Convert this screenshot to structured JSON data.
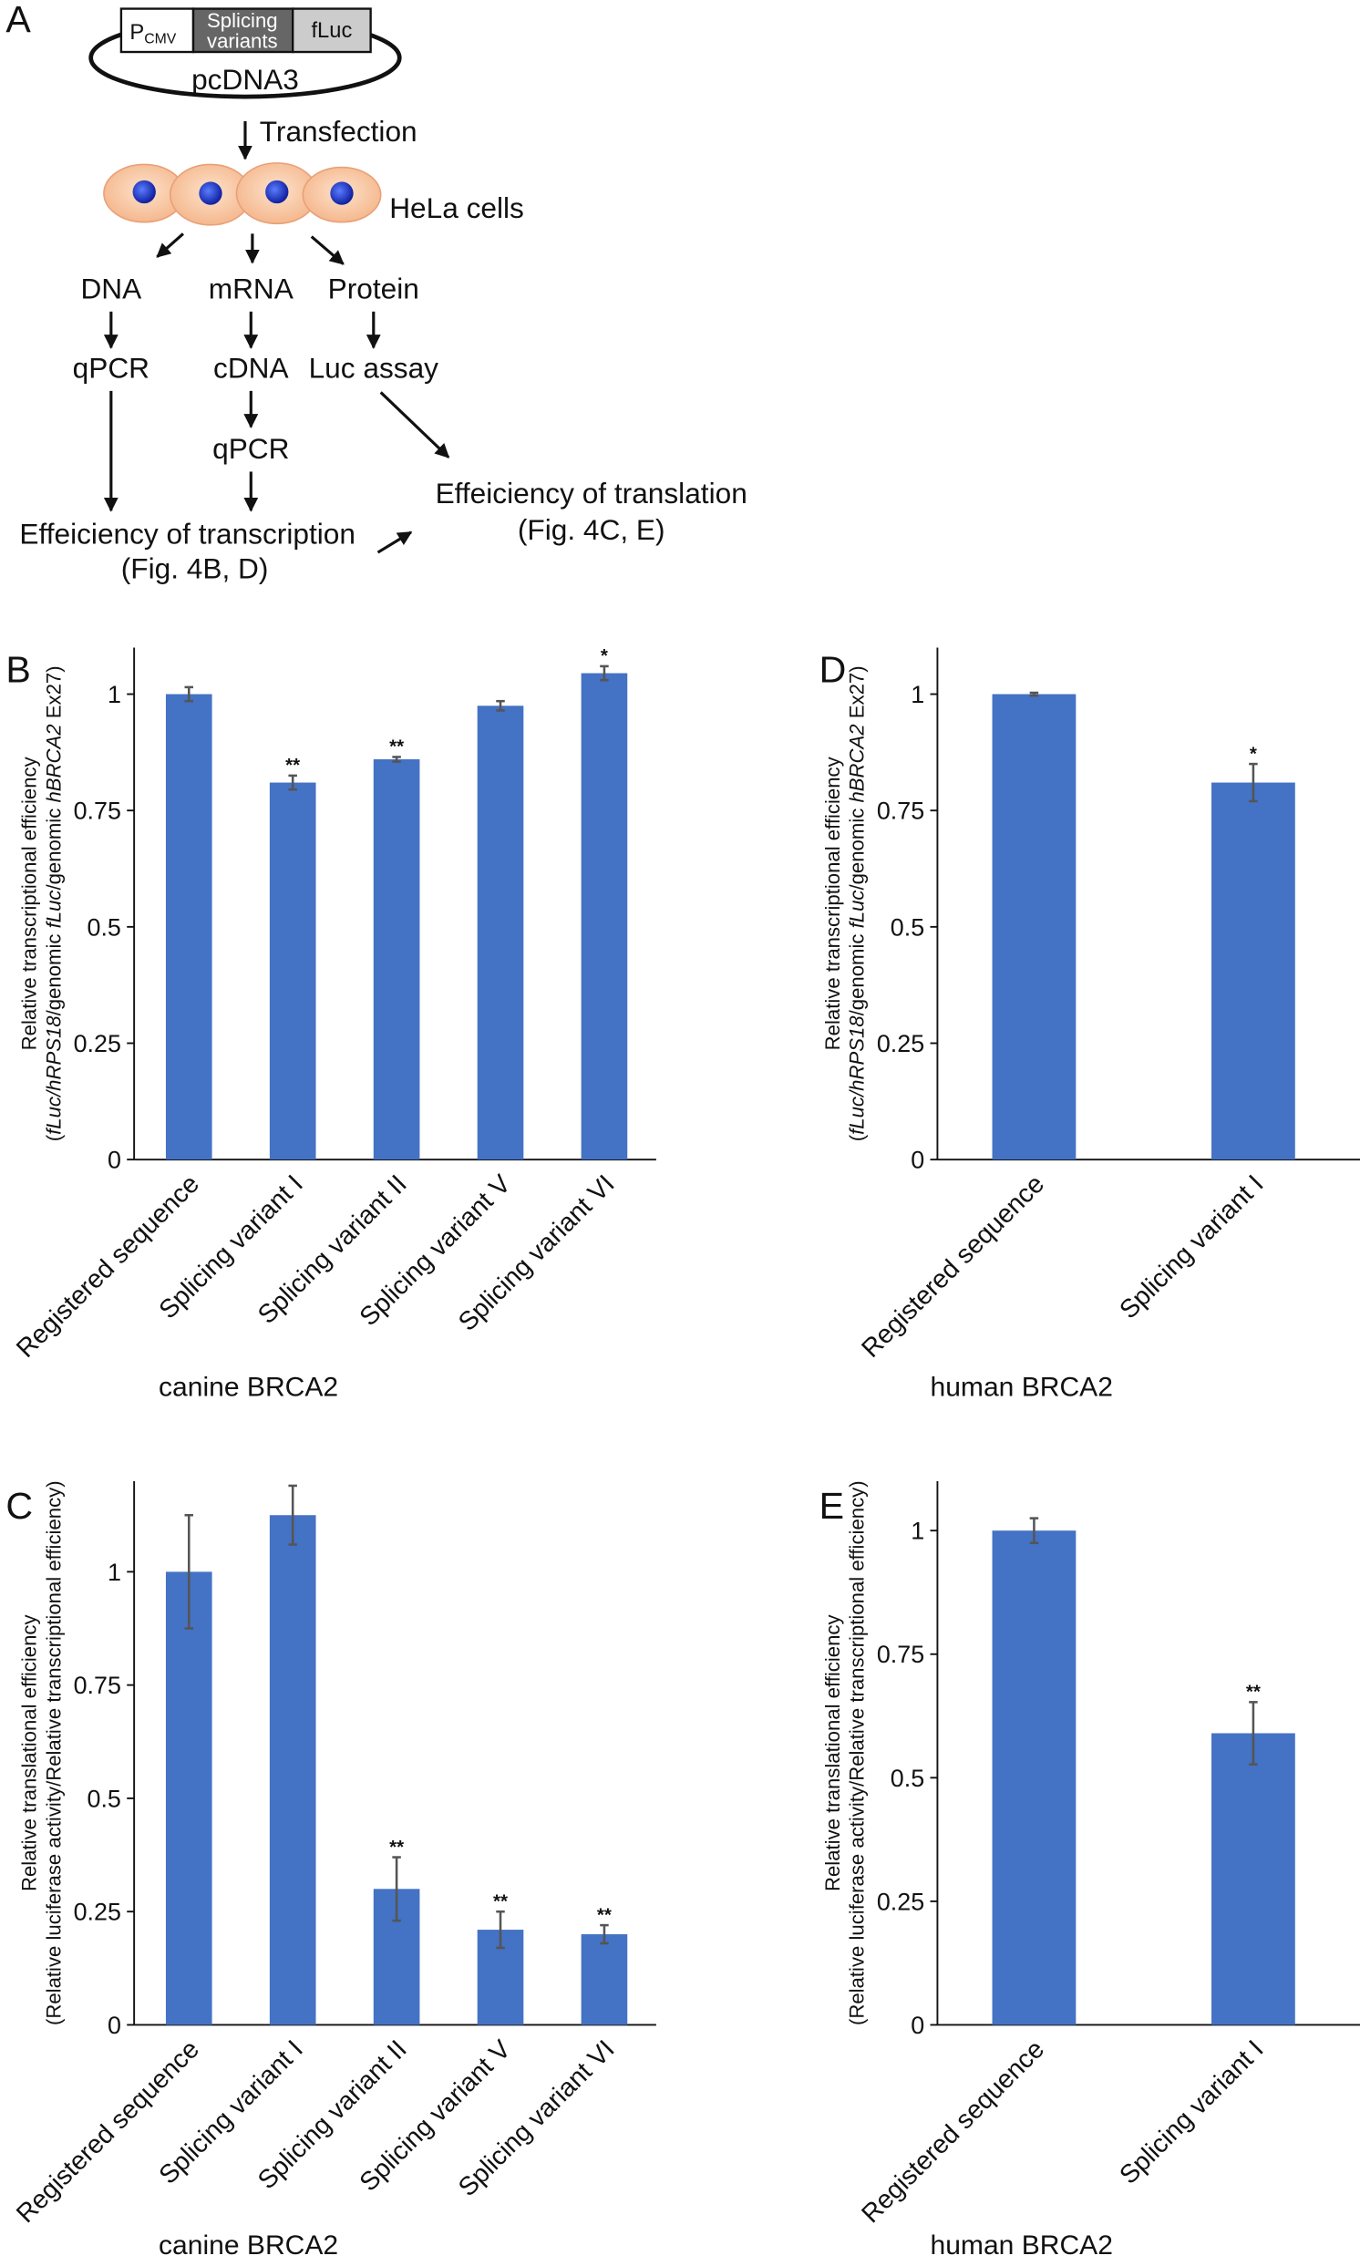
{
  "diagram": {
    "panel": "A",
    "promoter": "P",
    "promoter_sub": "CMV",
    "insert": [
      "Splicing",
      "variants"
    ],
    "reporter": "fLuc",
    "vector": "pcDNA3",
    "transfection": "Transfection",
    "cells": "HeLa cells",
    "dna": "DNA",
    "mrna": "mRNA",
    "protein": "Protein",
    "qpcr_dna": "qPCR",
    "cdna": "cDNA",
    "luc_assay": "Luc assay",
    "qpcr_cdna": "qPCR",
    "transcription": [
      "Effeiciency of transcription",
      "(Fig. 4B, D)"
    ],
    "translation": [
      "Effeiciency of translation",
      "(Fig. 4C, E)"
    ]
  },
  "chart_data": [
    {
      "type": "bar",
      "panel": "B",
      "categories": [
        "Registered sequence",
        "Splicing variant I",
        "Splicing variant II",
        "Splicing variant V",
        "Splicing variant VI"
      ],
      "values": [
        1.0,
        0.81,
        0.86,
        0.975,
        1.045
      ],
      "errors": [
        0.015,
        0.015,
        0.005,
        0.01,
        0.015
      ],
      "annotations": [
        null,
        "**",
        "**",
        null,
        "*"
      ],
      "color": "#4472c4",
      "ylim": [
        0,
        1.1
      ],
      "yticks": [
        0,
        0.25,
        0.5,
        0.75,
        1
      ],
      "ylabel": [
        [
          {
            "text": "Relative transcriptional efficiency",
            "italic": false
          }
        ],
        [
          {
            "text": "(",
            "italic": false
          },
          {
            "text": "fLuc/hRPS18",
            "italic": true
          },
          {
            "text": "/genomic ",
            "italic": false
          },
          {
            "text": "fLuc",
            "italic": true
          },
          {
            "text": "/genomic ",
            "italic": false
          },
          {
            "text": "hBRCA2",
            "italic": true
          },
          {
            "text": " Ex27)",
            "italic": false
          }
        ]
      ],
      "xlabel": "canine BRCA2"
    },
    {
      "type": "bar",
      "panel": "D",
      "categories": [
        "Registered sequence",
        "Splicing variant I"
      ],
      "values": [
        1.0,
        0.81
      ],
      "errors": [
        0.003,
        0.04
      ],
      "annotations": [
        null,
        "*"
      ],
      "color": "#4472c4",
      "ylim": [
        0,
        1.1
      ],
      "yticks": [
        0,
        0.25,
        0.5,
        0.75,
        1
      ],
      "ylabel": [
        [
          {
            "text": "Relative transcriptional efficiency",
            "italic": false
          }
        ],
        [
          {
            "text": "(",
            "italic": false
          },
          {
            "text": "fLuc/hRPS18",
            "italic": true
          },
          {
            "text": "/genomic ",
            "italic": false
          },
          {
            "text": "fLuc",
            "italic": true
          },
          {
            "text": "/genomic ",
            "italic": false
          },
          {
            "text": "hBRCA2",
            "italic": true
          },
          {
            "text": " Ex27)",
            "italic": false
          }
        ]
      ],
      "xlabel": "human BRCA2"
    },
    {
      "type": "bar",
      "panel": "C",
      "categories": [
        "Registered sequence",
        "Splicing variant I",
        "Splicing variant II",
        "Splicing variant V",
        "Splicing variant VI"
      ],
      "values": [
        1.0,
        1.125,
        0.3,
        0.21,
        0.2
      ],
      "errors": [
        0.125,
        0.065,
        0.07,
        0.04,
        0.02
      ],
      "annotations": [
        null,
        null,
        "**",
        "**",
        "**"
      ],
      "color": "#4472c4",
      "ylim": [
        0,
        1.2
      ],
      "yticks": [
        0,
        0.25,
        0.5,
        0.75,
        1
      ],
      "ylabel": [
        [
          {
            "text": "Relative translational efficiency",
            "italic": false
          }
        ],
        [
          {
            "text": "(Relative luciferase activity/Relative transcriptional efficiency)",
            "italic": false
          }
        ]
      ],
      "xlabel": "canine BRCA2"
    },
    {
      "type": "bar",
      "panel": "E",
      "categories": [
        "Registered sequence",
        "Splicing variant I"
      ],
      "values": [
        1.0,
        0.59
      ],
      "errors": [
        0.025,
        0.063
      ],
      "annotations": [
        null,
        "**"
      ],
      "color": "#4472c4",
      "ylim": [
        0,
        1.1
      ],
      "yticks": [
        0,
        0.25,
        0.5,
        0.75,
        1
      ],
      "ylabel": [
        [
          {
            "text": "Relative translational efficiency",
            "italic": false
          }
        ],
        [
          {
            "text": "(Relative luciferase activity/Relative transcriptional efficiency)",
            "italic": false
          }
        ]
      ],
      "xlabel": "human BRCA2"
    }
  ]
}
